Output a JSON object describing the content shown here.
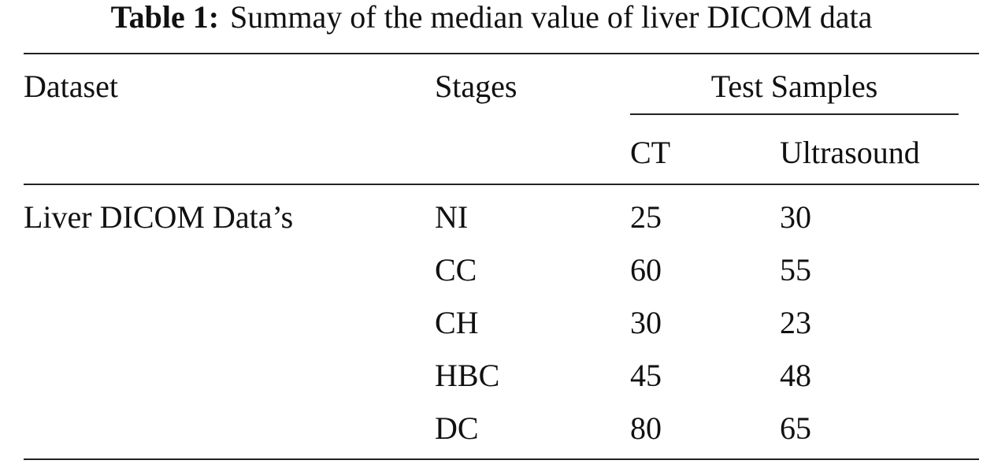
{
  "caption": {
    "label": "Table 1:",
    "text": "Summay of the median value of liver DICOM data"
  },
  "table": {
    "headers": {
      "dataset": "Dataset",
      "stages": "Stages",
      "group": "Test Samples",
      "ct": "CT",
      "ultrasound": "Ultrasound"
    },
    "dataset": "Liver DICOM Data’s",
    "rows": [
      [
        "NI",
        25,
        30
      ],
      [
        "CC",
        60,
        55
      ],
      [
        "CH",
        30,
        23
      ],
      [
        "HBC",
        45,
        48
      ],
      [
        "DC",
        80,
        65
      ]
    ]
  }
}
